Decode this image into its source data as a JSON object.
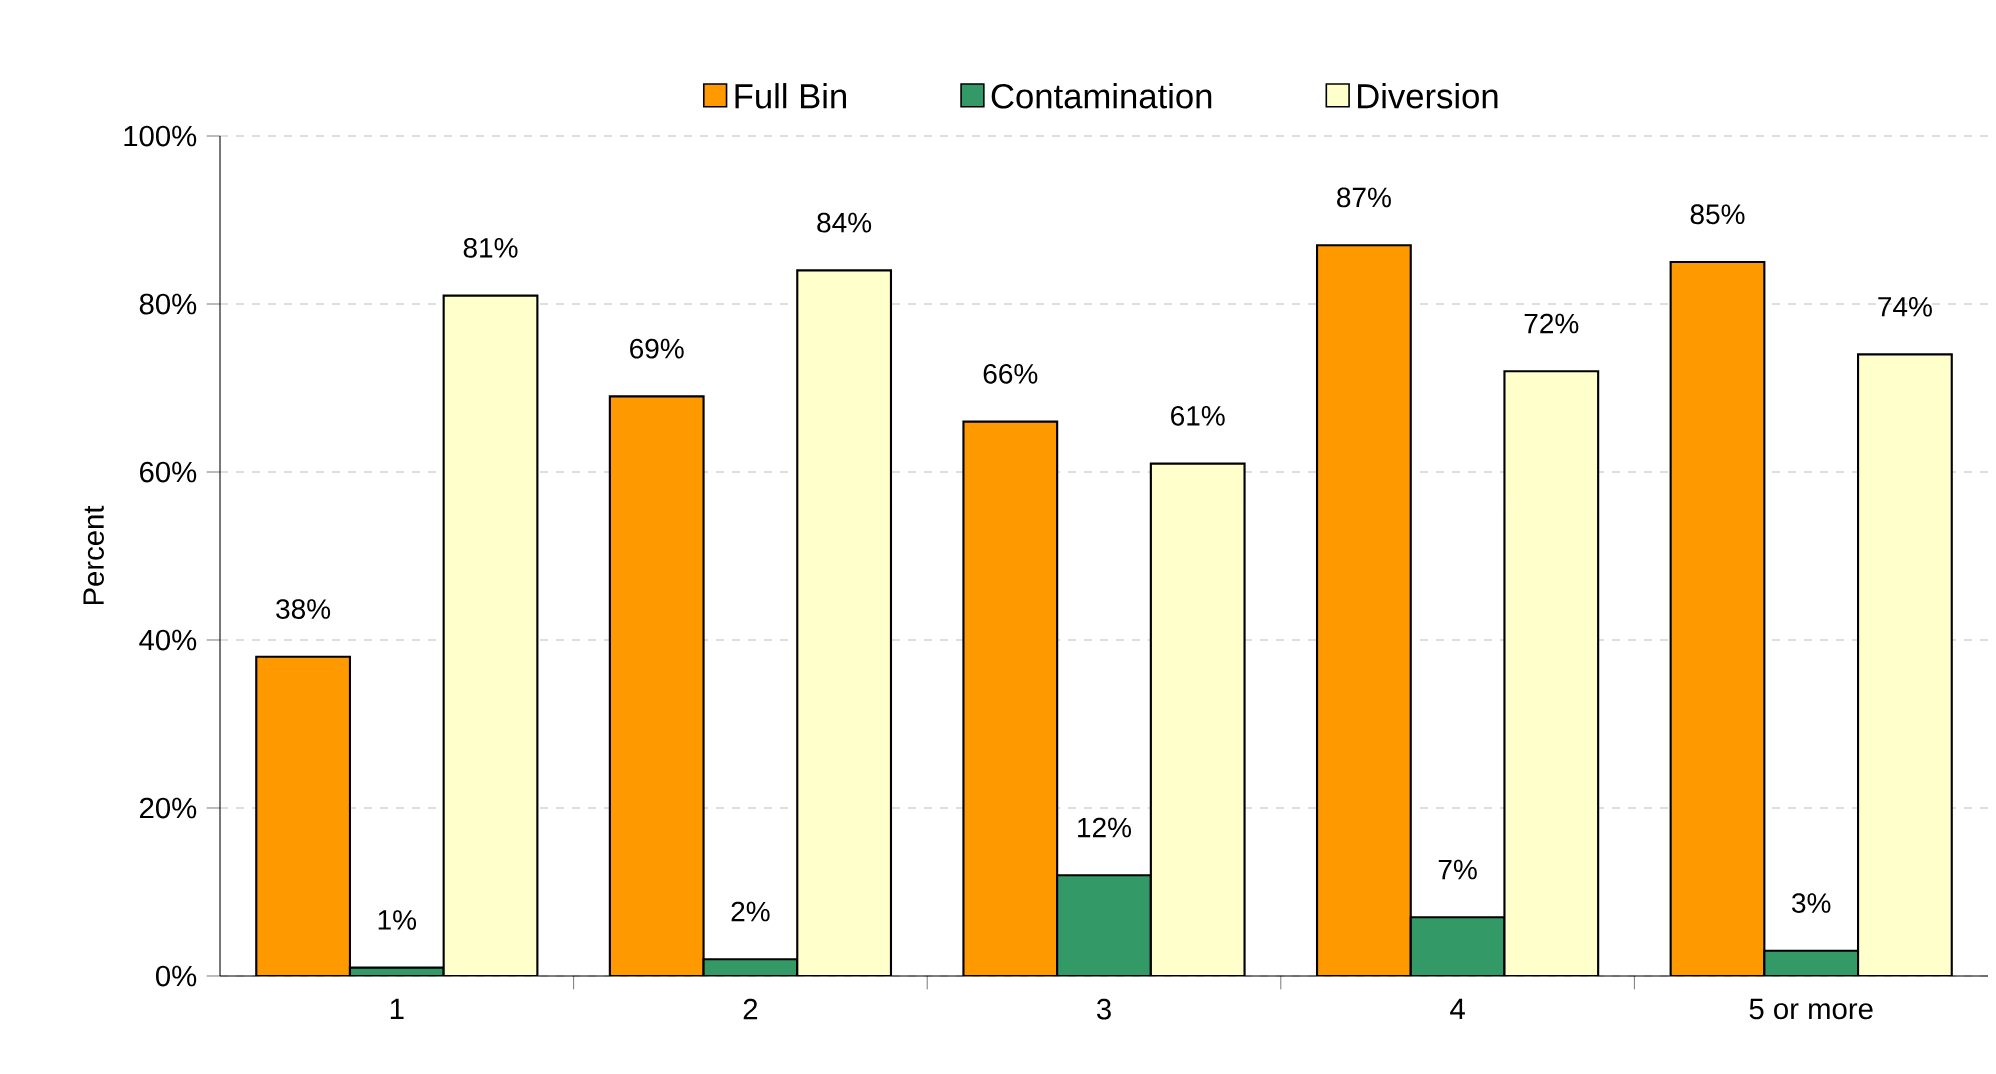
{
  "chart_data": {
    "type": "bar",
    "ylabel": "Percent",
    "categories": [
      "1",
      "2",
      "3",
      "4",
      "5 or more"
    ],
    "series": [
      {
        "name": "Full Bin",
        "color": "#ff9900",
        "values": [
          38,
          69,
          66,
          87,
          85
        ],
        "value_labels": [
          "38%",
          "69%",
          "66%",
          "87%",
          "85%"
        ]
      },
      {
        "name": "Contamination",
        "color": "#339966",
        "values": [
          1,
          2,
          12,
          7,
          3
        ],
        "value_labels": [
          "1%",
          "2%",
          "12%",
          "7%",
          "3%"
        ]
      },
      {
        "name": "Diversion",
        "color": "#ffffcc",
        "values": [
          81,
          84,
          61,
          72,
          74
        ],
        "value_labels": [
          "81%",
          "84%",
          "61%",
          "72%",
          "74%"
        ]
      }
    ],
    "ylim": [
      0,
      100
    ],
    "yticks": [
      {
        "value": 0,
        "label": "0%"
      },
      {
        "value": 20,
        "label": "20%"
      },
      {
        "value": 40,
        "label": "40%"
      },
      {
        "value": 60,
        "label": "60%"
      },
      {
        "value": 80,
        "label": "80%"
      },
      {
        "value": 100,
        "label": "100%"
      }
    ],
    "grid": "y",
    "legend": "top"
  }
}
